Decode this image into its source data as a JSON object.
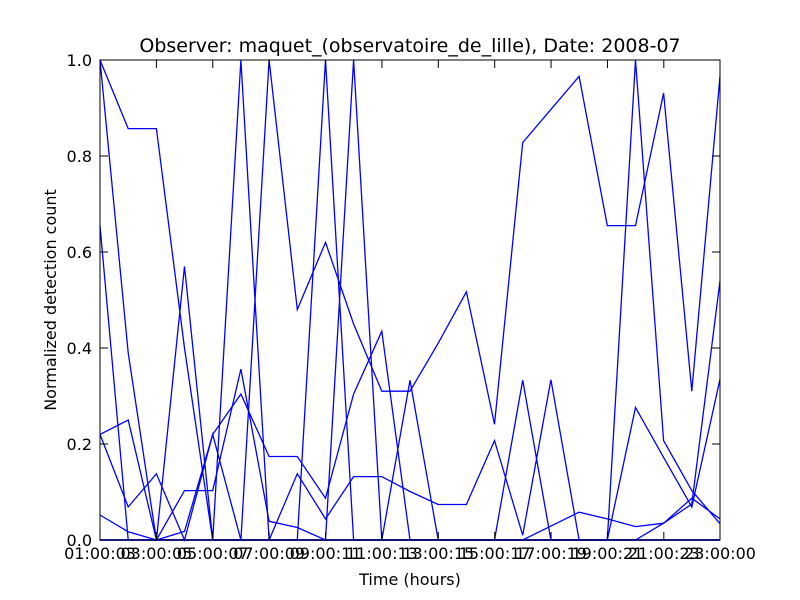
{
  "chart_data": {
    "type": "line",
    "title": "Observer: maquet_(observatoire_de_lille), Date: 2008-07",
    "xlabel": "Time (hours)",
    "ylabel": "Normalized detection count",
    "xlim": [
      "01:00:00",
      "23:00:00"
    ],
    "ylim": [
      0,
      1.0
    ],
    "x_ticks": [
      "01:00:03",
      "03:00:05",
      "05:00:07",
      "07:00:09",
      "09:00:11",
      "11:00:13",
      "13:00:15",
      "15:00:17",
      "17:00:19",
      "19:00:21",
      "21:00:23",
      "23:00:00"
    ],
    "y_ticks": [
      "0.0",
      "0.2",
      "0.4",
      "0.6",
      "0.8",
      "1.0"
    ],
    "color": "#0000ff",
    "grid": false,
    "x": [
      "01:00",
      "02:00",
      "03:00",
      "04:00",
      "05:00",
      "06:00",
      "07:00",
      "08:00",
      "09:00",
      "10:00",
      "11:00",
      "12:00",
      "13:00",
      "14:00",
      "15:00",
      "16:00",
      "17:00",
      "18:00",
      "19:00",
      "20:00",
      "21:00",
      "22:00",
      "23:00"
    ],
    "series": [
      {
        "values": [
          1.0,
          0.857,
          0.857,
          0.4,
          0.0,
          1.0,
          0.0,
          0.0,
          0.0,
          0.0,
          0.0,
          0.0,
          0.0,
          0.0,
          0.0,
          0.0,
          0.0,
          0.0,
          0.0,
          0.0,
          0.0,
          0.0,
          0.0
        ]
      },
      {
        "values": [
          0.655,
          0.0,
          0.0,
          0.0,
          0.0,
          0.0,
          1.0,
          0.48,
          0.62,
          0.45,
          0.31,
          0.31,
          0.41,
          0.517,
          0.241,
          0.828,
          0.897,
          0.966,
          0.655,
          0.655,
          0.931,
          0.31,
          0.966
        ]
      },
      {
        "values": [
          0.22,
          0.25,
          0.0,
          0.57,
          0.0,
          0.0,
          0.0,
          0.0,
          1.0,
          0.0,
          0.0,
          0.333,
          0.0,
          0.0,
          0.0,
          0.333,
          0.0,
          0.0,
          0.0,
          1.0,
          0.207,
          0.103,
          0.034
        ]
      },
      {
        "values": [
          0.22,
          0.069,
          0.138,
          0.0,
          0.22,
          0.304,
          0.174,
          0.174,
          0.087,
          0.304,
          0.435,
          0.0,
          0.0,
          0.0,
          0.0,
          0.0,
          0.0,
          0.0,
          0.0,
          0.0,
          0.0,
          0.0,
          0.0
        ]
      },
      {
        "values": [
          0.052,
          0.017,
          0.0,
          0.103,
          0.103,
          0.356,
          0.039,
          0.026,
          0.0,
          0.0,
          0.0,
          0.0,
          0.0,
          0.0,
          0.0,
          0.0,
          0.0,
          0.0,
          0.0,
          0.0,
          0.0,
          0.0,
          0.0
        ]
      },
      {
        "values": [
          1.0,
          0.39,
          0.0,
          0.018,
          0.22,
          0.0,
          0.0,
          0.0,
          0.0,
          1.0,
          0.0,
          0.0,
          0.0,
          0.0,
          0.0,
          0.0,
          0.0,
          0.0,
          0.0,
          0.0,
          0.0,
          0.0,
          0.0
        ]
      },
      {
        "values": [
          0.0,
          0.0,
          0.0,
          0.0,
          0.0,
          0.0,
          0.0,
          0.0,
          0.0,
          0.0,
          0.0,
          0.0,
          0.0,
          0.0,
          0.0,
          0.0,
          0.0,
          0.0,
          0.0,
          0.0,
          0.0,
          0.0,
          0.0
        ]
      },
      {
        "values": [
          0.0,
          0.0,
          0.0,
          0.0,
          0.0,
          0.0,
          0.0,
          0.138,
          0.044,
          0.132,
          0.132,
          0.101,
          0.074,
          0.074,
          0.207,
          0.01,
          0.334,
          0.0,
          0.0,
          0.0,
          0.0,
          0.0,
          0.0
        ]
      },
      {
        "values": [
          0.0,
          0.0,
          0.0,
          0.0,
          0.0,
          0.0,
          0.0,
          0.0,
          0.0,
          0.0,
          0.0,
          0.0,
          0.0,
          0.0,
          0.0,
          0.0,
          0.0,
          0.0,
          0.0,
          0.276,
          0.172,
          0.069,
          0.335
        ]
      },
      {
        "values": [
          0.0,
          0.0,
          0.0,
          0.0,
          0.0,
          0.0,
          0.0,
          0.0,
          0.0,
          0.0,
          0.0,
          0.0,
          0.0,
          0.0,
          0.0,
          0.0,
          0.029,
          0.058,
          0.044,
          0.028,
          0.035,
          0.087,
          0.044
        ]
      },
      {
        "values": [
          0.0,
          0.0,
          0.0,
          0.0,
          0.0,
          0.0,
          0.0,
          0.0,
          0.0,
          0.0,
          0.0,
          0.0,
          0.0,
          0.0,
          0.0,
          0.0,
          0.0,
          0.0,
          0.0,
          0.0,
          0.035,
          0.075,
          0.54
        ]
      }
    ]
  }
}
